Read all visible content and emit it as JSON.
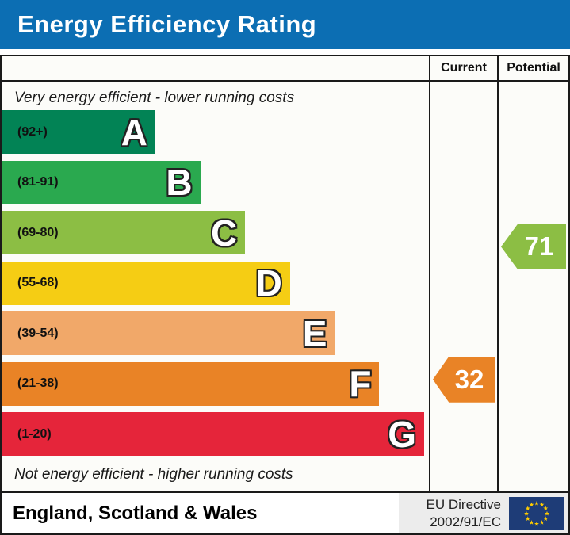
{
  "title": "Energy Efficiency Rating",
  "columns": {
    "current": "Current",
    "potential": "Potential"
  },
  "captions": {
    "top": "Very energy efficient - lower running costs",
    "bottom": "Not energy efficient - higher running costs"
  },
  "footer": {
    "region": "England, Scotland & Wales",
    "eu_directive_line1": "EU Directive",
    "eu_directive_line2": "2002/91/EC"
  },
  "colors": {
    "title_bar": "#0c6eb3",
    "border": "#1a1a1a",
    "flag_bg": "#1e3c77",
    "flag_stars": "#ffcc00"
  },
  "chart_data": {
    "type": "bar",
    "title": "Energy Efficiency Rating",
    "orientation": "horizontal",
    "bands": [
      {
        "letter": "A",
        "range_label": "(92+)",
        "min": 92,
        "max": 100,
        "color": "#028355",
        "width_pct": 36.0
      },
      {
        "letter": "B",
        "range_label": "(81-91)",
        "min": 81,
        "max": 91,
        "color": "#2aa94f",
        "width_pct": 46.5
      },
      {
        "letter": "C",
        "range_label": "(69-80)",
        "min": 69,
        "max": 80,
        "color": "#8cbe44",
        "width_pct": 57.0
      },
      {
        "letter": "D",
        "range_label": "(55-68)",
        "min": 55,
        "max": 68,
        "color": "#f5cd14",
        "width_pct": 67.5
      },
      {
        "letter": "E",
        "range_label": "(39-54)",
        "min": 39,
        "max": 54,
        "color": "#f1a869",
        "width_pct": 78.0
      },
      {
        "letter": "F",
        "range_label": "(21-38)",
        "min": 21,
        "max": 38,
        "color": "#e98326",
        "width_pct": 88.4
      },
      {
        "letter": "G",
        "range_label": "(1-20)",
        "min": 1,
        "max": 20,
        "color": "#e5253a",
        "width_pct": 98.9
      }
    ],
    "markers": {
      "current": {
        "value": 32,
        "band": "F",
        "color": "#e98326"
      },
      "potential": {
        "value": 71,
        "band": "C",
        "color": "#8cbe44"
      }
    },
    "value_range": [
      1,
      100
    ]
  }
}
